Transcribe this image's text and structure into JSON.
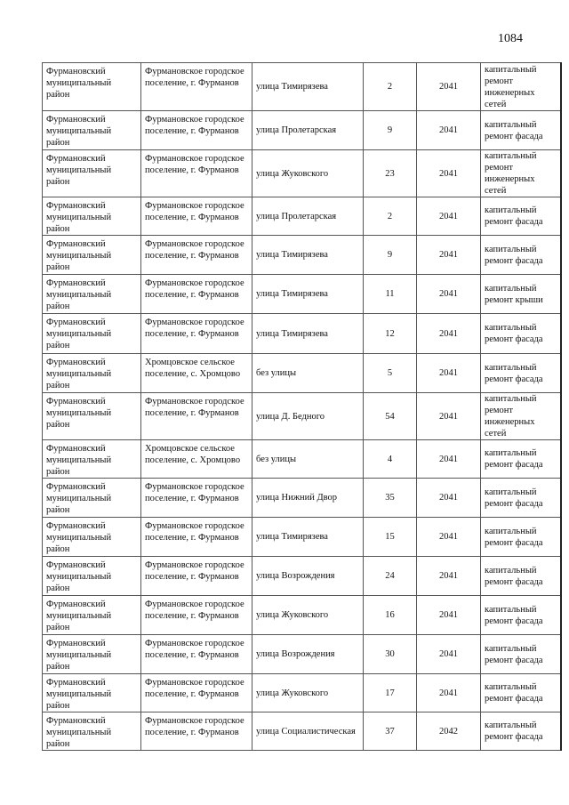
{
  "page_number": "1084",
  "rows": [
    {
      "district": "Фурмановский муниципальный район",
      "settlement": "Фурмановское городское поселение, г. Фурманов",
      "street": "улица Тимирязева",
      "house": "2",
      "year": "2041",
      "work": "капитальный ремонт инженерных сетей"
    },
    {
      "district": "Фурмановский муниципальный район",
      "settlement": "Фурмановское городское поселение, г. Фурманов",
      "street": "улица  Пролетарская",
      "house": "9",
      "year": "2041",
      "work": "капитальный ремонт фасада"
    },
    {
      "district": "Фурмановский муниципальный район",
      "settlement": "Фурмановское городское поселение, г. Фурманов",
      "street": "улица  Жуковского",
      "house": "23",
      "year": "2041",
      "work": "капитальный ремонт инженерных сетей"
    },
    {
      "district": "Фурмановский муниципальный район",
      "settlement": "Фурмановское городское поселение, г. Фурманов",
      "street": "улица  Пролетарская",
      "house": "2",
      "year": "2041",
      "work": "капитальный ремонт фасада"
    },
    {
      "district": "Фурмановский муниципальный район",
      "settlement": "Фурмановское городское поселение, г. Фурманов",
      "street": "улица Тимирязева",
      "house": "9",
      "year": "2041",
      "work": "капитальный ремонт фасада"
    },
    {
      "district": "Фурмановский муниципальный район",
      "settlement": "Фурмановское городское поселение, г. Фурманов",
      "street": "улица Тимирязева",
      "house": "11",
      "year": "2041",
      "work": "капитальный ремонт крыши"
    },
    {
      "district": "Фурмановский муниципальный район",
      "settlement": "Фурмановское городское поселение, г. Фурманов",
      "street": "улица Тимирязева",
      "house": "12",
      "year": "2041",
      "work": "капитальный ремонт фасада"
    },
    {
      "district": "Фурмановский муниципальный район",
      "settlement": "Хромцовское сельское поселение, с. Хромцово",
      "street": "без улицы",
      "house": "5",
      "year": "2041",
      "work": "капитальный ремонт фасада"
    },
    {
      "district": "Фурмановский муниципальный район",
      "settlement": "Фурмановское городское поселение, г. Фурманов",
      "street": "улица Д. Бедного",
      "house": "54",
      "year": "2041",
      "work": "капитальный ремонт инженерных сетей"
    },
    {
      "district": "Фурмановский муниципальный район",
      "settlement": "Хромцовское сельское поселение, с. Хромцово",
      "street": "без улицы",
      "house": "4",
      "year": "2041",
      "work": "капитальный ремонт фасада"
    },
    {
      "district": "Фурмановский муниципальный район",
      "settlement": "Фурмановское городское поселение, г. Фурманов",
      "street": "улица Нижний Двор",
      "house": "35",
      "year": "2041",
      "work": "капитальный ремонт фасада"
    },
    {
      "district": "Фурмановский муниципальный район",
      "settlement": "Фурмановское городское поселение, г. Фурманов",
      "street": "улица Тимирязева",
      "house": "15",
      "year": "2041",
      "work": "капитальный ремонт фасада"
    },
    {
      "district": "Фурмановский муниципальный район",
      "settlement": "Фурмановское городское поселение, г. Фурманов",
      "street": "улица Возрождения",
      "house": "24",
      "year": "2041",
      "work": "капитальный ремонт фасада"
    },
    {
      "district": "Фурмановский муниципальный район",
      "settlement": "Фурмановское городское поселение, г. Фурманов",
      "street": "улица  Жуковского",
      "house": "16",
      "year": "2041",
      "work": "капитальный ремонт фасада"
    },
    {
      "district": "Фурмановский муниципальный район",
      "settlement": "Фурмановское городское поселение, г. Фурманов",
      "street": "улица Возрождения",
      "house": "30",
      "year": "2041",
      "work": "капитальный ремонт фасада"
    },
    {
      "district": "Фурмановский муниципальный район",
      "settlement": "Фурмановское городское поселение, г. Фурманов",
      "street": "улица Жуковского",
      "house": "17",
      "year": "2041",
      "work": "капитальный ремонт фасада"
    },
    {
      "district": "Фурмановский муниципальный район",
      "settlement": "Фурмановское городское поселение, г. Фурманов",
      "street": "улица Социалистическая",
      "house": "37",
      "year": "2042",
      "work": "капитальный ремонт фасада"
    }
  ]
}
